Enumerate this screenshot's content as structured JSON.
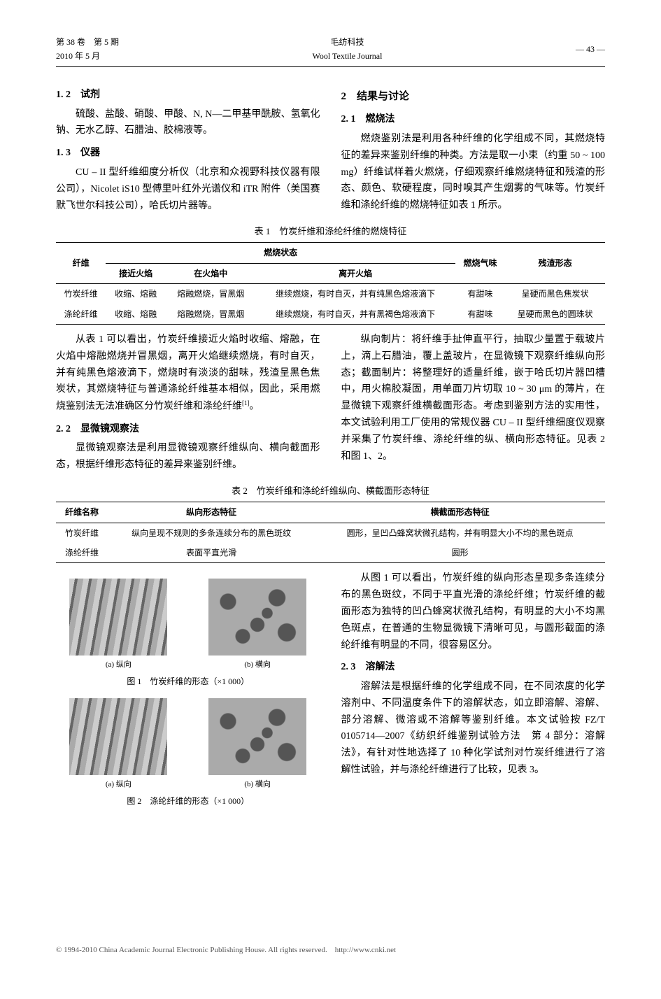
{
  "header": {
    "vol": "第 38 卷　第 5 期",
    "date": "2010 年 5 月",
    "journal_cn": "毛纺科技",
    "journal_en": "Wool Textile Journal",
    "page": "— 43 —"
  },
  "sections": {
    "s1_2": {
      "heading": "1. 2　试剂",
      "body": "硫酸、盐酸、硝酸、甲酸、N, N—二甲基甲酰胺、氢氧化钠、无水乙醇、石腊油、胶棉液等。"
    },
    "s1_3": {
      "heading": "1. 3　仪器",
      "body": "CU – II 型纤维细度分析仪（北京和众视野科技仪器有限公司），Nicolet iS10 型傅里叶红外光谱仪和 iTR 附件（美国赛默飞世尔科技公司），哈氏切片器等。"
    },
    "s2": {
      "heading": "2　结果与讨论"
    },
    "s2_1": {
      "heading": "2. 1　燃烧法",
      "body": "燃烧鉴别法是利用各种纤维的化学组成不同，其燃烧特征的差异来鉴别纤维的种类。方法是取一小束（约重 50 ~ 100 mg）纤维试样着火燃烧，仔细观察纤维燃烧特征和残渣的形态、颜色、软硬程度，同时嗅其产生烟雾的气味等。竹炭纤维和涤纶纤维的燃烧特征如表 1 所示。"
    },
    "after_t1_left": "从表 1 可以看出，竹炭纤维接近火焰时收缩、熔融，在火焰中熔融燃烧并冒黑烟，离开火焰继续燃烧，有时自灭，并有纯黑色熔液滴下，燃烧时有淡淡的甜味，残渣呈黑色焦炭状，其燃烧特征与普通涤纶纤维基本相似，因此，采用燃烧鉴别法无法准确区分竹炭纤维和涤纶纤维",
    "after_t1_left_ref": "[1]",
    "after_t1_left_tail": "。",
    "s2_2": {
      "heading": "2. 2　显微镜观察法",
      "body": "显微镜观察法是利用显微镜观察纤维纵向、横向截面形态，根据纤维形态特征的差异来鉴别纤维。"
    },
    "after_t1_right": "纵向制片：将纤维手扯伸直平行，抽取少量置于载玻片上，滴上石腊油，覆上盖玻片，在显微镜下观察纤维纵向形态；截面制片：将整理好的适量纤维，嵌于哈氏切片器凹槽中，用火棉胶凝固，用单面刀片切取 10 ~ 30 μm 的薄片，在显微镜下观察纤维横截面形态。考虑到鉴别方法的实用性，本文试验利用工厂使用的常规仪器 CU – II 型纤维细度仪观察并采集了竹炭纤维、涤纶纤维的纵、横向形态特征。见表 2 和图 1、2。",
    "after_figs_right_1": "从图 1 可以看出，竹炭纤维的纵向形态呈现多条连续分布的黑色斑纹，不同于平直光滑的涤纶纤维；竹炭纤维的截面形态为独特的凹凸蜂窝状微孔结构，有明显的大小不均黑色斑点，在普通的生物显微镜下清晰可见，与圆形截面的涤纶纤维有明显的不同，很容易区分。",
    "s2_3": {
      "heading": "2. 3　溶解法",
      "body": "溶解法是根据纤维的化学组成不同，在不同浓度的化学溶剂中、不同温度条件下的溶解状态，如立即溶解、溶解、部分溶解、微溶或不溶解等鉴别纤维。本文试验按 FZ/T 0105714—2007《纺织纤维鉴别试验方法　第 4 部分：溶解法》，有针对性地选择了 10 种化学试剂对竹炭纤维进行了溶解性试验，并与涤纶纤维进行了比较，见表 3。"
    }
  },
  "table1": {
    "caption": "表 1　竹炭纤维和涤纶纤维的燃烧特征",
    "h_fiber": "纤维",
    "h_state": "燃烧状态",
    "h_near": "接近火焰",
    "h_in": "在火焰中",
    "h_leave": "离开火焰",
    "h_smell": "燃烧气味",
    "h_residue": "残渣形态",
    "rows": [
      {
        "fiber": "竹炭纤维",
        "near": "收缩、熔融",
        "in": "熔融燃烧，冒黑烟",
        "leave": "继续燃烧，有时自灭，并有纯黑色熔液滴下",
        "smell": "有甜味",
        "residue": "呈硬而黑色焦炭状"
      },
      {
        "fiber": "涤纶纤维",
        "near": "收缩、熔融",
        "in": "熔融燃烧，冒黑烟",
        "leave": "继续燃烧，有时自灭，并有黑褐色熔液滴下",
        "smell": "有甜味",
        "residue": "呈硬而黑色的圆珠状"
      }
    ]
  },
  "table2": {
    "caption": "表 2　竹炭纤维和涤纶纤维纵向、横截面形态特征",
    "h_name": "纤维名称",
    "h_long": "纵向形态特征",
    "h_cross": "横截面形态特征",
    "rows": [
      {
        "name": "竹炭纤维",
        "long": "纵向呈现不规则的多条连续分布的黑色斑纹",
        "cross": "圆形，呈凹凸蜂窝状微孔结构，并有明显大小不均的黑色斑点"
      },
      {
        "name": "涤纶纤维",
        "long": "表面平直光滑",
        "cross": "圆形"
      }
    ]
  },
  "figures": {
    "sub_a": "(a) 纵向",
    "sub_b": "(b) 横向",
    "fig1_caption": "图 1　竹炭纤维的形态（×1 000）",
    "fig2_caption": "图 2　涤纶纤维的形态（×1 000）"
  },
  "footer": "© 1994-2010 China Academic Journal Electronic Publishing House. All rights reserved.　http://www.cnki.net"
}
